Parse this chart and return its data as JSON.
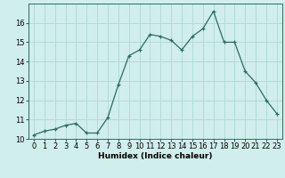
{
  "x": [
    0,
    1,
    2,
    3,
    4,
    5,
    6,
    7,
    8,
    9,
    10,
    11,
    12,
    13,
    14,
    15,
    16,
    17,
    18,
    19,
    20,
    21,
    22,
    23
  ],
  "y": [
    10.2,
    10.4,
    10.5,
    10.7,
    10.8,
    10.3,
    10.3,
    11.1,
    12.8,
    14.3,
    14.6,
    15.4,
    15.3,
    15.1,
    14.6,
    15.3,
    15.7,
    16.6,
    15.0,
    15.0,
    13.5,
    12.9,
    12.0,
    11.3
  ],
  "line_color": "#2e6b5e",
  "bg_color": "#d0eeeb",
  "grid_color": "#b0d8d4",
  "xlabel": "Humidex (Indice chaleur)",
  "ylim": [
    10,
    17
  ],
  "xlim_min": -0.5,
  "xlim_max": 23.5,
  "yticks": [
    10,
    11,
    12,
    13,
    14,
    15,
    16
  ],
  "xticks": [
    0,
    1,
    2,
    3,
    4,
    5,
    6,
    7,
    8,
    9,
    10,
    11,
    12,
    13,
    14,
    15,
    16,
    17,
    18,
    19,
    20,
    21,
    22,
    23
  ],
  "xtick_labels": [
    "0",
    "1",
    "2",
    "3",
    "4",
    "5",
    "6",
    "7",
    "8",
    "9",
    "10",
    "11",
    "12",
    "13",
    "14",
    "15",
    "16",
    "17",
    "18",
    "19",
    "20",
    "21",
    "22",
    "23"
  ],
  "axis_label_fontsize": 6.5,
  "tick_fontsize": 6,
  "marker": "+",
  "marker_size": 3.5,
  "line_width": 0.9
}
